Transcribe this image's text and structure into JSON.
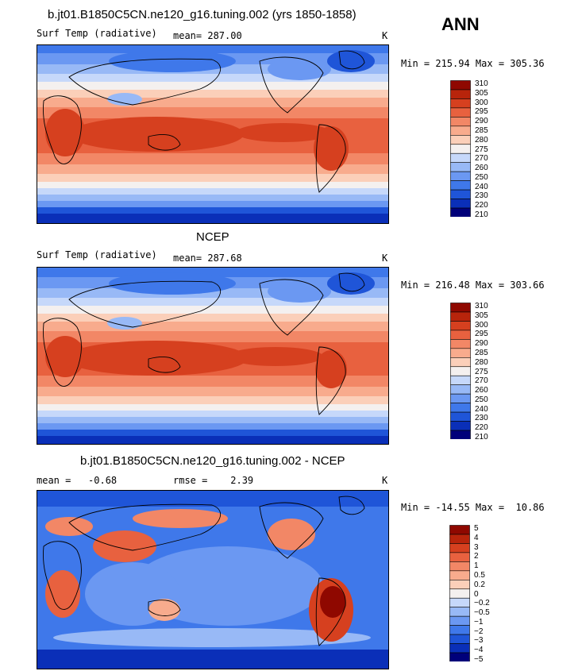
{
  "season": "ANN",
  "colors": {
    "temp_scale": [
      "#00007a",
      "#0a2fb8",
      "#1f55d8",
      "#3f78ea",
      "#6b98f2",
      "#98b9f6",
      "#c6d8fa",
      "#f4f0ef",
      "#fbcfb9",
      "#f8ab8d",
      "#f28766",
      "#e8613f",
      "#d6401f",
      "#b8240b",
      "#8f0800"
    ],
    "diff_scale": [
      "#00007a",
      "#0a2fb8",
      "#1f55d8",
      "#3f78ea",
      "#6b98f2",
      "#98b9f6",
      "#c6d8fa",
      "#f4f0ef",
      "#fbcfb9",
      "#f8ab8d",
      "#f28766",
      "#e8613f",
      "#d6401f",
      "#b8240b",
      "#8f0800"
    ]
  },
  "chart_data": [
    {
      "type": "heatmap",
      "title": "b.jt01.B1850C5CN.ne120_g16.tuning.002 (yrs 1850-1858)",
      "variable": "Surf Temp (radiative)",
      "mean_text": "mean= 287.00",
      "units": "K",
      "minmax_text": "Min = 215.94 Max = 305.36",
      "min": 215.94,
      "max": 305.36,
      "contour_levels": [
        "310",
        "305",
        "300",
        "295",
        "290",
        "285",
        "280",
        "275",
        "270",
        "260",
        "250",
        "240",
        "230",
        "220",
        "210"
      ]
    },
    {
      "type": "heatmap",
      "title": "NCEP",
      "variable": "Surf Temp (radiative)",
      "mean_text": "mean= 287.68",
      "units": "K",
      "minmax_text": "Min = 216.48 Max = 303.66",
      "min": 216.48,
      "max": 303.66,
      "contour_levels": [
        "310",
        "305",
        "300",
        "295",
        "290",
        "285",
        "280",
        "275",
        "270",
        "260",
        "250",
        "240",
        "230",
        "220",
        "210"
      ]
    },
    {
      "type": "heatmap",
      "title": "b.jt01.B1850C5CN.ne120_g16.tuning.002 - NCEP",
      "mean_text": "mean =   -0.68",
      "rmse_text": "rmse =    2.39",
      "units": "K",
      "minmax_text": "Min = -14.55 Max =  10.86",
      "min": -14.55,
      "max": 10.86,
      "contour_levels": [
        "5",
        "4",
        "3",
        "2",
        "1",
        "0.5",
        "0.2",
        "0",
        "−0.2",
        "−0.5",
        "−1",
        "−2",
        "−3",
        "−4",
        "−5"
      ]
    }
  ]
}
